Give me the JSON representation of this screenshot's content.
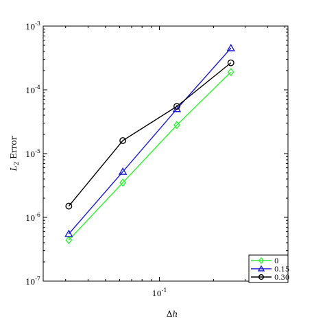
{
  "chart_data": {
    "type": "line",
    "xscale": "log",
    "yscale": "log",
    "xlabel": "Δh",
    "ylabel": "L2 Error",
    "ylabel_parts": {
      "symbol": "L",
      "subscript": "2",
      "word": "Error"
    },
    "xlabel_parts": {
      "delta": "Δ",
      "var": "h"
    },
    "xlim": [
      0.0225,
      0.52
    ],
    "ylim": [
      1e-07,
      0.001
    ],
    "yticks": [
      {
        "value": 1e-07,
        "base": "10",
        "exp": "-7"
      },
      {
        "value": 1e-06,
        "base": "10",
        "exp": "-6"
      },
      {
        "value": 1e-05,
        "base": "10",
        "exp": "-5"
      },
      {
        "value": 0.0001,
        "base": "10",
        "exp": "-4"
      },
      {
        "value": 0.001,
        "base": "10",
        "exp": "-3"
      }
    ],
    "xticks": [
      {
        "value": 0.1,
        "base": "10",
        "exp": "-1"
      }
    ],
    "grid": false,
    "legend_position": "bottom-right",
    "series": [
      {
        "name": "0",
        "color": "#33ee33",
        "marker": "diamond",
        "x": [
          0.03125,
          0.0625,
          0.125,
          0.25
        ],
        "y": [
          4.4e-07,
          3.5e-06,
          2.8e-05,
          0.00019
        ]
      },
      {
        "name": "0.15",
        "color": "#1a1acc",
        "marker": "triangle",
        "x": [
          0.03125,
          0.0625,
          0.125,
          0.25
        ],
        "y": [
          5.5e-07,
          5.2e-06,
          5e-05,
          0.00045
        ]
      },
      {
        "name": "0.30",
        "color": "#000000",
        "marker": "circle",
        "x": [
          0.03125,
          0.0625,
          0.125,
          0.25
        ],
        "y": [
          1.5e-06,
          1.6e-05,
          5.5e-05,
          0.000265
        ]
      }
    ]
  }
}
